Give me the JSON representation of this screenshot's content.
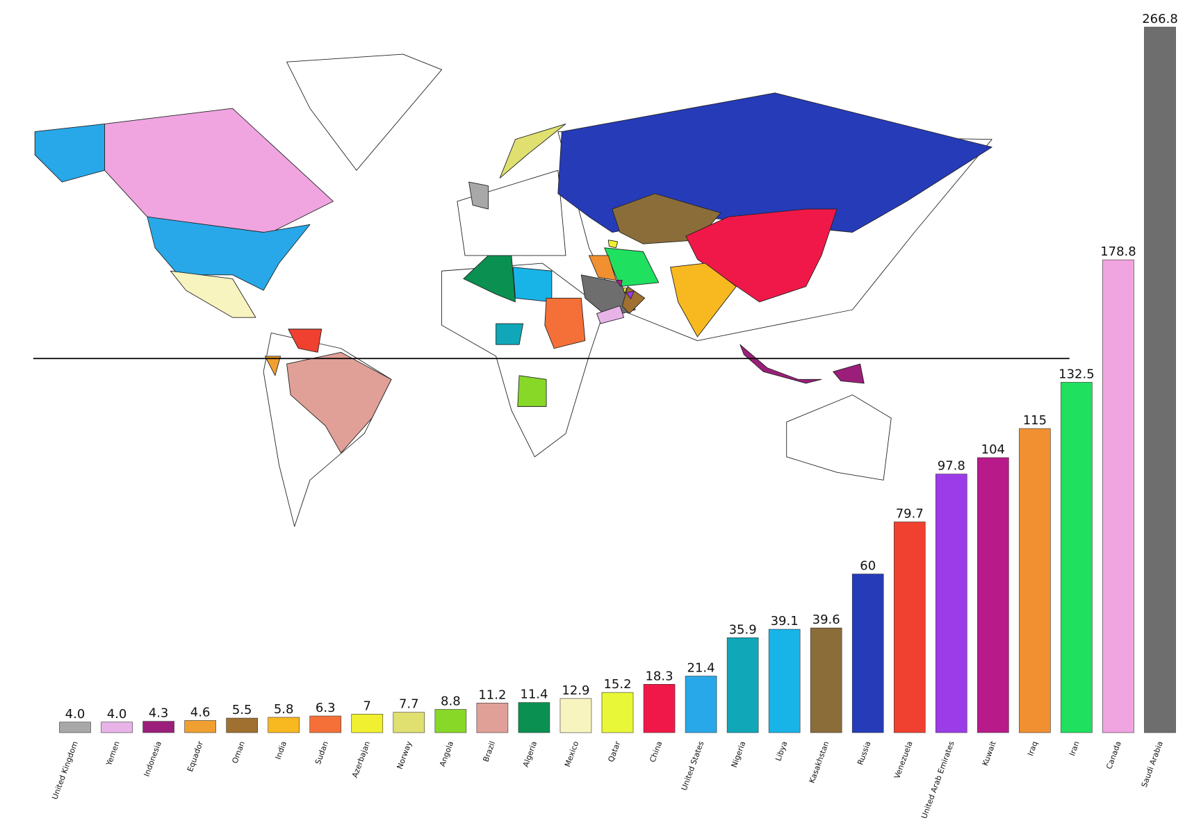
{
  "chart_data": {
    "type": "bar",
    "categories": [
      "United Kingdom",
      "Yemen",
      "Indonesia",
      "Equador",
      "Oman",
      "India",
      "Sudan",
      "Azerbajan",
      "Norway",
      "Angola",
      "Brazil",
      "Algeria",
      "Mexico",
      "Qatar",
      "China",
      "United States",
      "Nigeria",
      "Libya",
      "Kasakhstan",
      "Russia",
      "Venezuela",
      "United Arab Emirates",
      "Kuwait",
      "Iraq",
      "Iran",
      "Canada",
      "Saudi Arabia"
    ],
    "values": [
      4.0,
      4.0,
      4.3,
      4.6,
      5.5,
      5.8,
      6.3,
      7,
      7.7,
      8.8,
      11.2,
      11.4,
      12.9,
      15.2,
      18.3,
      21.4,
      35.9,
      39.1,
      39.6,
      60,
      79.7,
      97.8,
      104,
      115,
      132.5,
      178.8,
      266.8
    ],
    "value_labels": [
      "4.0",
      "4.0",
      "4.3",
      "4.6",
      "5.5",
      "5.8",
      "6.3",
      "7",
      "7.7",
      "8.8",
      "11.2",
      "11.4",
      "12.9",
      "15.2",
      "18.3",
      "21.4",
      "35.9",
      "39.1",
      "39.6",
      "60",
      "79.7",
      "97.8",
      "104",
      "115",
      "132.5",
      "178.8",
      "266.8"
    ],
    "colors": [
      "#a8a8a8",
      "#e8b4e8",
      "#9b1f7a",
      "#f0a030",
      "#a07030",
      "#f8b820",
      "#f47038",
      "#f0f030",
      "#e0e070",
      "#88d828",
      "#e0a098",
      "#0a9050",
      "#f8f4c0",
      "#e8f838",
      "#f01848",
      "#28a8e8",
      "#10a8b8",
      "#18b4e8",
      "#8b6d3a",
      "#263bb8",
      "#f04030",
      "#9b3ce8",
      "#b81a8a",
      "#f09030",
      "#20e060",
      "#f0a4e0",
      "#6e6e6e"
    ]
  }
}
